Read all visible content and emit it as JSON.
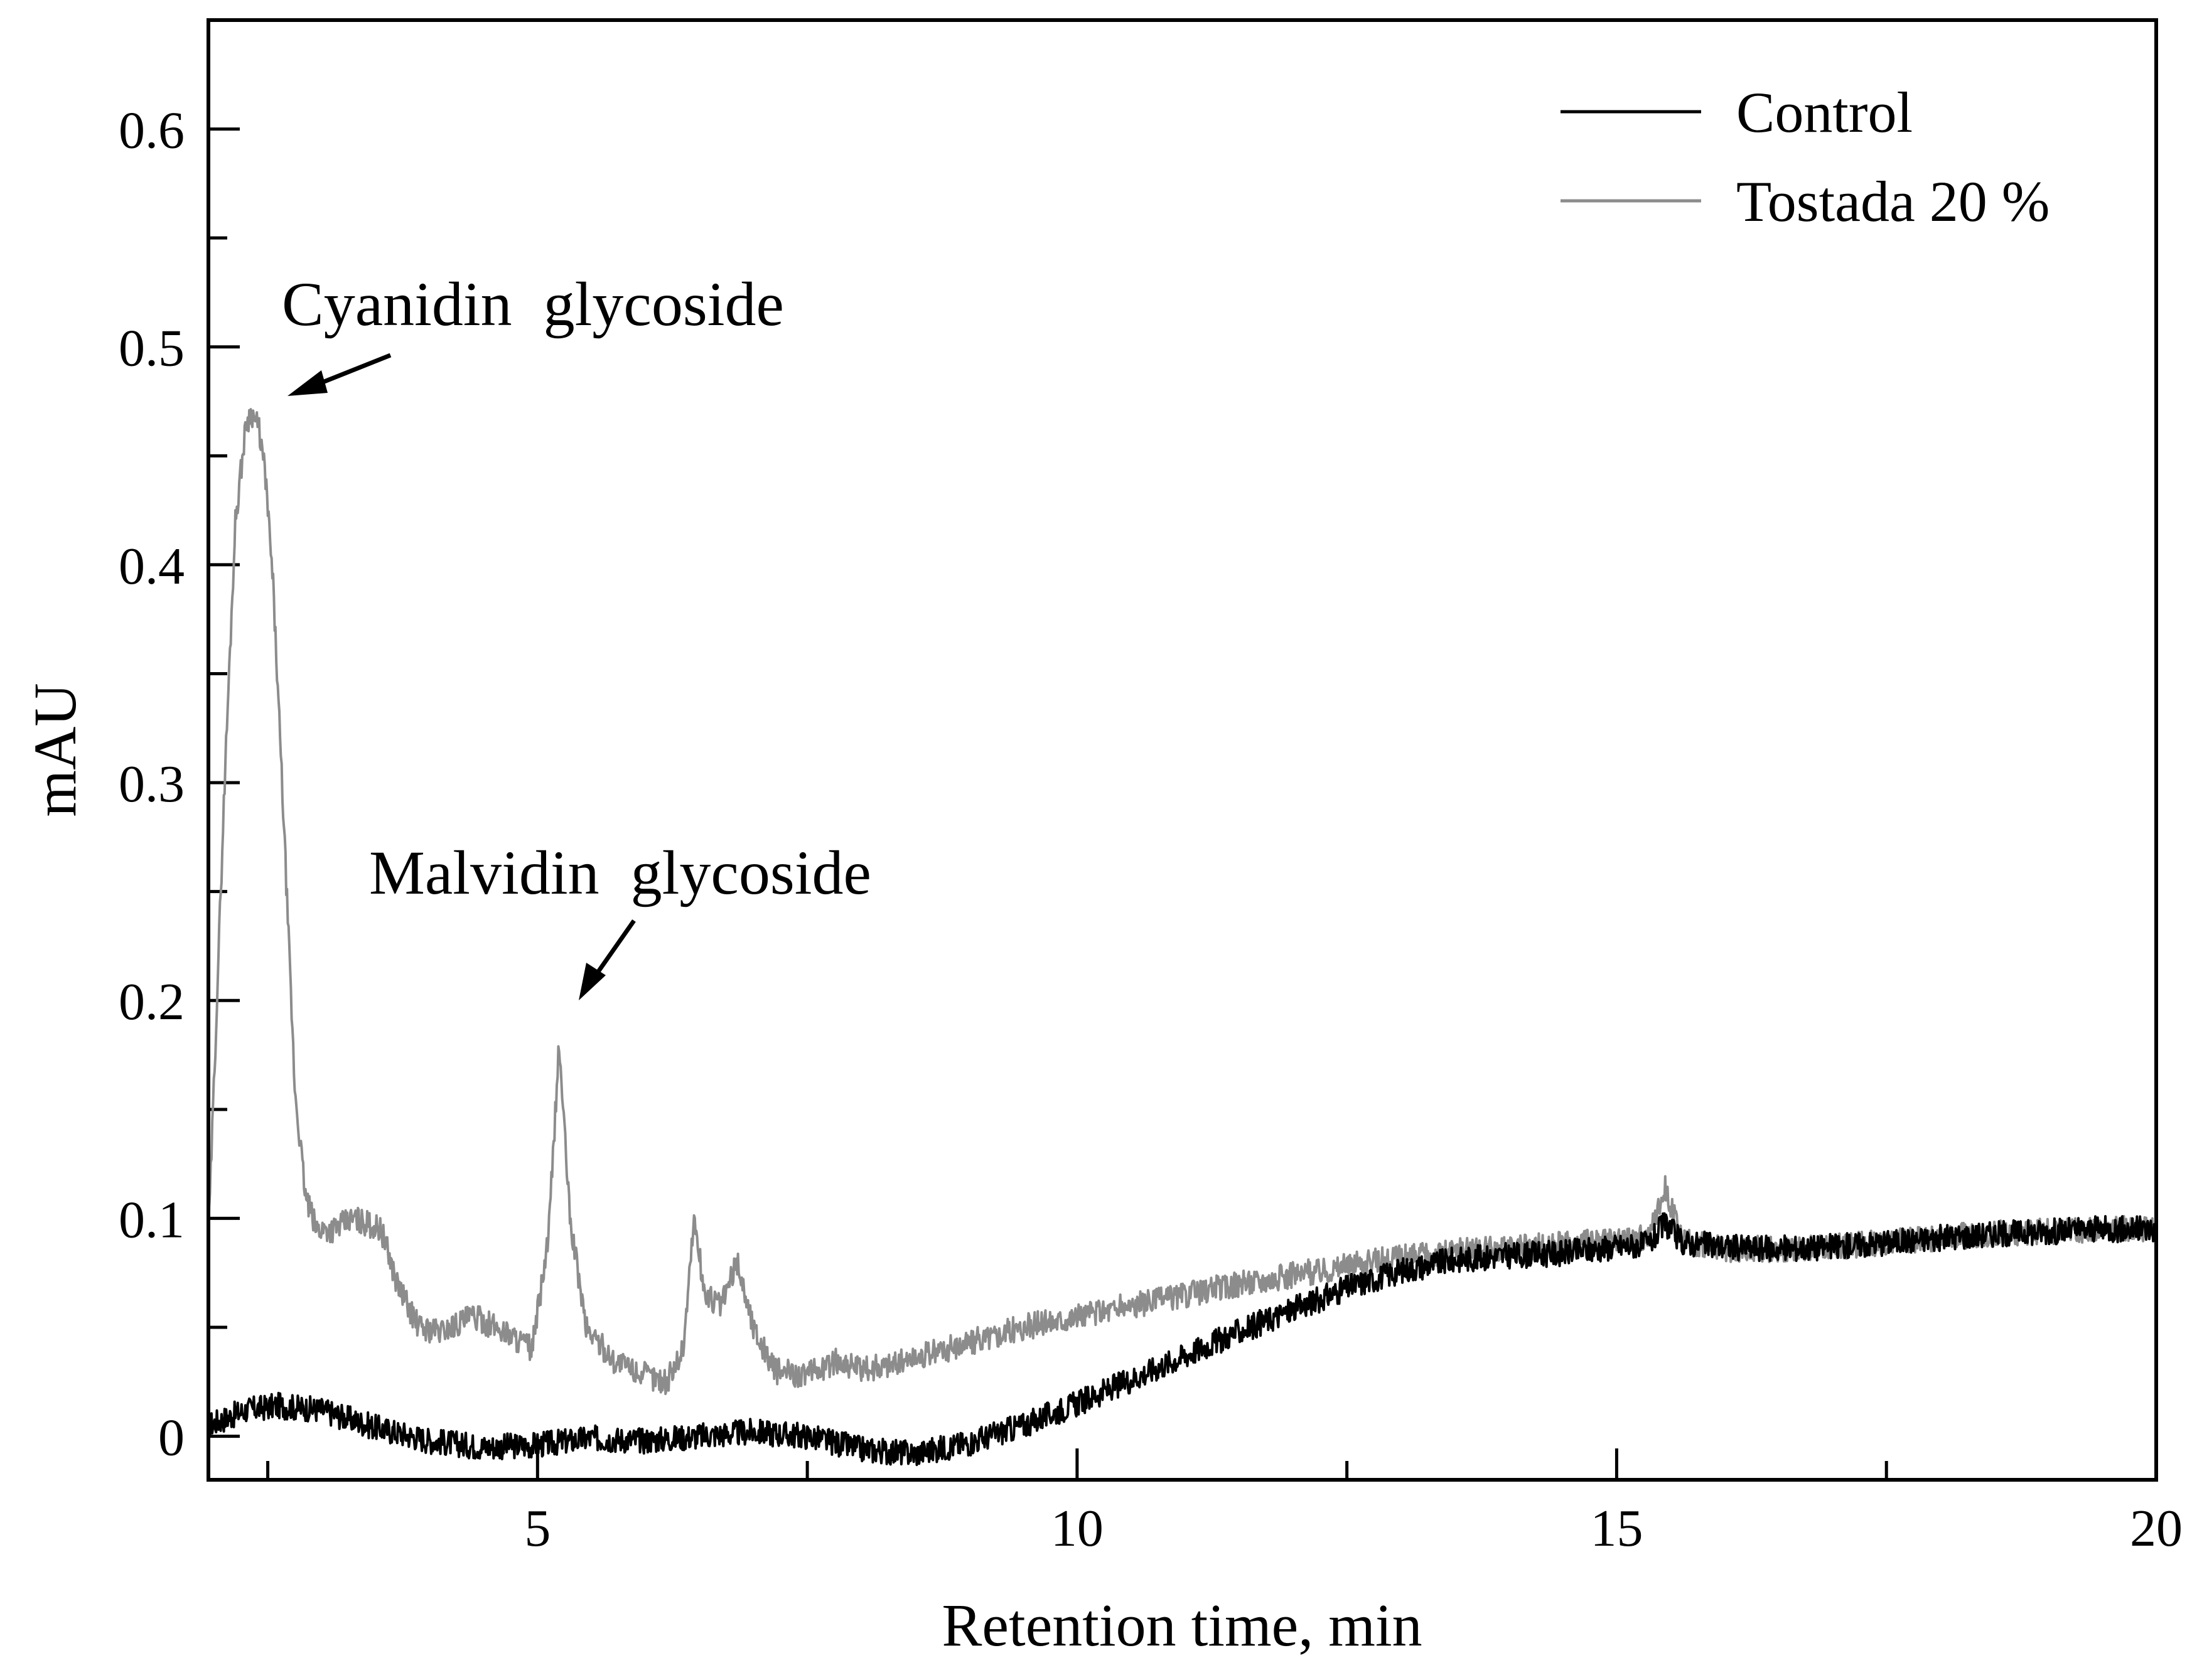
{
  "chart_data": {
    "type": "line",
    "xlabel": "Retention time, min",
    "ylabel": "mAU",
    "xlim": [
      1.95,
      20
    ],
    "ylim": [
      -0.02,
      0.65
    ],
    "x_ticks": [
      5,
      10,
      15,
      20
    ],
    "x_tick_labels": [
      "5",
      "10",
      "15",
      "20"
    ],
    "y_ticks": [
      0,
      0.1,
      0.2,
      0.3,
      0.4,
      0.5,
      0.6
    ],
    "y_tick_labels": [
      "0",
      "0.1",
      "0.2",
      "0.3",
      "0.4",
      "0.5",
      "0.6"
    ],
    "grid": false,
    "legend_position": "top-right",
    "series": [
      {
        "name": "Control",
        "color": "#000000",
        "x": [
          1.95,
          2.3,
          2.6,
          3.0,
          3.5,
          4.0,
          4.5,
          5.0,
          5.5,
          6.0,
          6.5,
          7.0,
          7.5,
          8.0,
          8.5,
          9.0,
          9.5,
          10.0,
          10.5,
          11.0,
          11.5,
          12.0,
          12.5,
          13.0,
          13.5,
          14.0,
          14.5,
          15.0,
          15.3,
          15.45,
          15.6,
          16.0,
          16.5,
          17.0,
          17.5,
          18.0,
          18.5,
          19.0,
          19.5,
          20.0
        ],
        "y": [
          0.005,
          0.012,
          0.014,
          0.012,
          0.004,
          -0.002,
          -0.005,
          -0.004,
          -0.001,
          -0.002,
          0.0,
          0.002,
          0.0,
          -0.006,
          -0.008,
          -0.003,
          0.005,
          0.015,
          0.026,
          0.037,
          0.048,
          0.058,
          0.068,
          0.076,
          0.081,
          0.083,
          0.084,
          0.087,
          0.088,
          0.098,
          0.089,
          0.087,
          0.086,
          0.087,
          0.089,
          0.091,
          0.093,
          0.094,
          0.095,
          0.095
        ]
      },
      {
        "name": "Tostada 20 %",
        "color": "#8c8c8c",
        "x": [
          1.95,
          2.0,
          2.1,
          2.2,
          2.3,
          2.35,
          2.42,
          2.48,
          2.55,
          2.65,
          2.75,
          2.85,
          2.95,
          3.1,
          3.3,
          3.55,
          3.7,
          3.9,
          4.1,
          4.4,
          4.7,
          4.95,
          5.1,
          5.2,
          5.3,
          5.45,
          5.7,
          6.0,
          6.2,
          6.35,
          6.45,
          6.55,
          6.7,
          6.85,
          7.0,
          7.2,
          7.5,
          7.8,
          8.0,
          8.5,
          9.0,
          9.5,
          10.0,
          10.5,
          11.0,
          11.5,
          12.0,
          12.5,
          13.0,
          13.5,
          14.0,
          14.5,
          15.0,
          15.3,
          15.45,
          15.6,
          16.0,
          16.5,
          17.0,
          17.5,
          18.0,
          18.5,
          19.0,
          19.5,
          20.0
        ],
        "y": [
          0.09,
          0.16,
          0.3,
          0.42,
          0.465,
          0.47,
          0.462,
          0.44,
          0.39,
          0.28,
          0.16,
          0.11,
          0.095,
          0.095,
          0.1,
          0.095,
          0.07,
          0.05,
          0.048,
          0.055,
          0.048,
          0.04,
          0.09,
          0.18,
          0.1,
          0.05,
          0.035,
          0.028,
          0.025,
          0.04,
          0.1,
          0.065,
          0.06,
          0.08,
          0.05,
          0.03,
          0.028,
          0.035,
          0.03,
          0.036,
          0.043,
          0.05,
          0.055,
          0.06,
          0.065,
          0.07,
          0.074,
          0.078,
          0.082,
          0.085,
          0.086,
          0.088,
          0.09,
          0.092,
          0.115,
          0.09,
          0.086,
          0.086,
          0.087,
          0.089,
          0.091,
          0.093,
          0.094,
          0.095,
          0.095
        ]
      }
    ],
    "annotations": [
      {
        "text": "Cyanidin  glycoside",
        "x": 2.45,
        "y": 0.47
      },
      {
        "text": "Malvidin  glycoside",
        "x": 5.2,
        "y": 0.2
      }
    ]
  }
}
